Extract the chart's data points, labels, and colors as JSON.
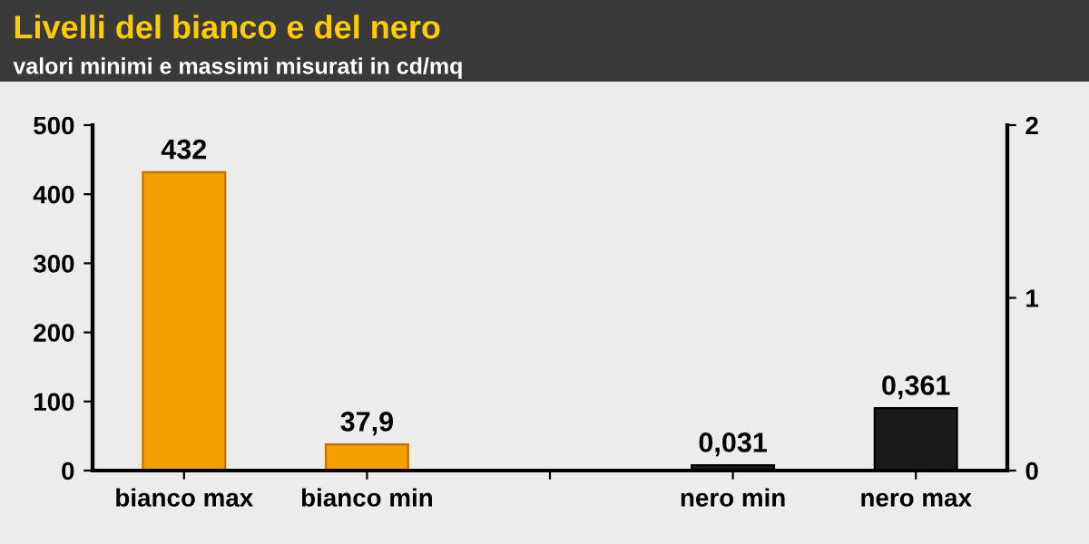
{
  "chart_data": {
    "type": "bar",
    "title": "Livelli del bianco e del nero",
    "subtitle": "valori minimi e massimi misurati in cd/mq",
    "categories": [
      "bianco max",
      "bianco min",
      null,
      "nero min",
      "nero max"
    ],
    "series": [
      {
        "color": "#f5a000",
        "values": [
          432,
          37.9,
          null,
          null,
          null
        ],
        "value_labels": [
          "432",
          "37,9",
          null,
          null,
          null
        ]
      },
      {
        "color": "#1a1a1a",
        "axis": "y2",
        "values": [
          null,
          null,
          null,
          0.031,
          0.361
        ],
        "value_labels": [
          null,
          null,
          null,
          "0,031",
          "0,361"
        ]
      }
    ],
    "ylim": [
      0,
      500
    ],
    "yticks": [
      0,
      100,
      200,
      300,
      400,
      500
    ],
    "y2lim": [
      0,
      2
    ],
    "y2ticks": [
      0,
      1,
      2
    ],
    "grid": false,
    "legend": false
  }
}
